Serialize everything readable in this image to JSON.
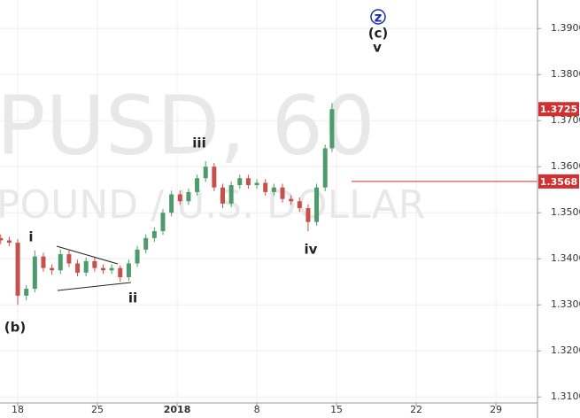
{
  "chart_data": {
    "type": "candlestick",
    "watermark": "PUSD, 60",
    "watermark_subtitle": "POUND / U.S. DOLLAR",
    "annotations": [
      "z",
      "(c)",
      "v",
      "iii",
      "i",
      "ii",
      "iv",
      "(b)"
    ],
    "up_color": "#4d9a6a",
    "down_color": "#c8504a",
    "price_line_color": "#d32f2f",
    "grid": true,
    "xlim": [
      -1.56,
      45.65
    ],
    "xticks": [
      {
        "value": 0,
        "label": "18"
      },
      {
        "value": 7,
        "label": "25"
      },
      {
        "value": 14,
        "label": "2018"
      },
      {
        "value": 21,
        "label": "8"
      },
      {
        "value": 28,
        "label": "15"
      },
      {
        "value": 35,
        "label": "22"
      },
      {
        "value": 42,
        "label": "29"
      }
    ],
    "ylim": [
      1.3087,
      1.3962
    ],
    "yticks": [
      {
        "value": 1.39,
        "label": "1.3900"
      },
      {
        "value": 1.38,
        "label": "1.3800"
      },
      {
        "value": 1.37,
        "label": "1.3700"
      },
      {
        "value": 1.36,
        "label": "1.3600"
      },
      {
        "value": 1.35,
        "label": "1.3500"
      },
      {
        "value": 1.34,
        "label": "1.3400"
      },
      {
        "value": 1.33,
        "label": "1.3300"
      },
      {
        "value": 1.32,
        "label": "1.3200"
      },
      {
        "value": 1.31,
        "label": "1.3100"
      }
    ],
    "last_price": 1.3725,
    "price_line": 1.3568,
    "x": [
      -1.5,
      -0.75,
      0,
      0.75,
      1.5,
      2.25,
      3,
      3.75,
      4.5,
      5.25,
      6,
      6.75,
      7.5,
      8.25,
      9,
      9.75,
      10.5,
      11.25,
      12,
      12.75,
      13.5,
      14.25,
      15,
      15.75,
      16.5,
      17.25,
      18,
      18.75,
      19.5,
      20.25,
      21,
      21.75,
      22.5,
      23.25,
      24,
      24.75,
      25.5,
      26.25,
      27,
      27.6
    ],
    "open": [
      1.3445,
      1.344,
      1.3435,
      1.332,
      1.3335,
      1.3405,
      1.338,
      1.3375,
      1.341,
      1.339,
      1.337,
      1.3395,
      1.338,
      1.3375,
      1.338,
      1.336,
      1.339,
      1.342,
      1.3445,
      1.346,
      1.35,
      1.354,
      1.3525,
      1.3545,
      1.3575,
      1.36,
      1.3555,
      1.352,
      1.356,
      1.3575,
      1.356,
      1.3565,
      1.3545,
      1.3555,
      1.353,
      1.3525,
      1.351,
      1.348,
      1.3555,
      1.364
    ],
    "high": [
      1.3453,
      1.3448,
      1.3443,
      1.3343,
      1.3418,
      1.3413,
      1.3388,
      1.342,
      1.3418,
      1.3398,
      1.3403,
      1.3403,
      1.3388,
      1.3388,
      1.3386,
      1.3398,
      1.3428,
      1.3453,
      1.3468,
      1.3508,
      1.3548,
      1.3548,
      1.3553,
      1.3583,
      1.3612,
      1.3608,
      1.3563,
      1.3568,
      1.3583,
      1.3583,
      1.3573,
      1.3573,
      1.3563,
      1.3563,
      1.3538,
      1.3533,
      1.3518,
      1.3563,
      1.3648,
      1.3738
    ],
    "low": [
      1.3432,
      1.3427,
      1.33,
      1.331,
      1.3327,
      1.3372,
      1.3365,
      1.3367,
      1.3382,
      1.3362,
      1.3362,
      1.3372,
      1.3367,
      1.3367,
      1.335,
      1.3352,
      1.3382,
      1.3412,
      1.3437,
      1.3452,
      1.3492,
      1.3517,
      1.3517,
      1.3537,
      1.3567,
      1.3547,
      1.351,
      1.3512,
      1.3552,
      1.3552,
      1.3552,
      1.3537,
      1.3537,
      1.3522,
      1.3517,
      1.3502,
      1.346,
      1.3472,
      1.3547,
      1.3632
    ],
    "close": [
      1.344,
      1.3435,
      1.332,
      1.3335,
      1.3405,
      1.338,
      1.3375,
      1.341,
      1.339,
      1.337,
      1.3395,
      1.338,
      1.3375,
      1.338,
      1.336,
      1.339,
      1.342,
      1.3445,
      1.346,
      1.35,
      1.354,
      1.3525,
      1.3545,
      1.3575,
      1.36,
      1.3555,
      1.352,
      1.356,
      1.3575,
      1.356,
      1.3565,
      1.3545,
      1.3555,
      1.353,
      1.3525,
      1.351,
      1.348,
      1.3555,
      1.364,
      1.3725
    ]
  }
}
